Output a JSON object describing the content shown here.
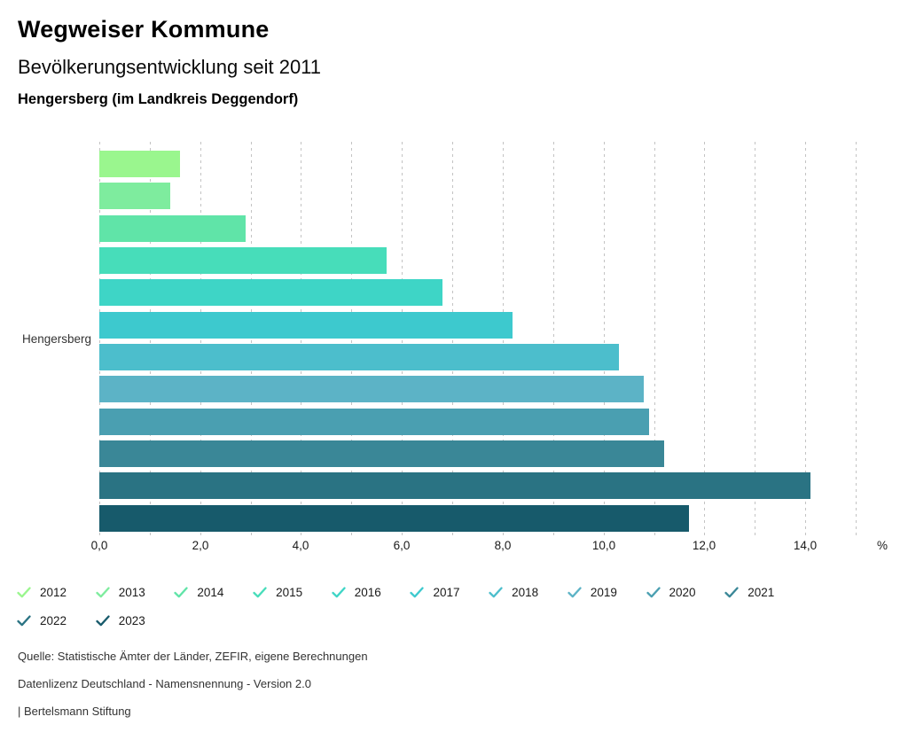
{
  "header": {
    "title": "Wegweiser Kommune",
    "subtitle": "Bevölkerungsentwicklung seit 2011",
    "municipality": "Hengersberg (im Landkreis Deggendorf)"
  },
  "chart_data": {
    "type": "bar",
    "orientation": "horizontal",
    "title": "Bevölkerungsentwicklung seit 2011",
    "category": "Hengersberg",
    "unit": "%",
    "xlim": [
      0,
      15
    ],
    "grid": true,
    "grid_interval": 1,
    "x_ticks": [
      {
        "value": 0,
        "label": "0,0"
      },
      {
        "value": 2,
        "label": "2,0"
      },
      {
        "value": 4,
        "label": "4,0"
      },
      {
        "value": 6,
        "label": "6,0"
      },
      {
        "value": 8,
        "label": "8,0"
      },
      {
        "value": 10,
        "label": "10,0"
      },
      {
        "value": 12,
        "label": "12,0"
      },
      {
        "value": 14,
        "label": "14,0"
      }
    ],
    "series": [
      {
        "name": "2012",
        "value": 1.6,
        "color": "#9AF68E"
      },
      {
        "name": "2013",
        "value": 1.4,
        "color": "#7EEC9E"
      },
      {
        "name": "2014",
        "value": 2.9,
        "color": "#60E4A8"
      },
      {
        "name": "2015",
        "value": 5.7,
        "color": "#47DDBA"
      },
      {
        "name": "2016",
        "value": 6.8,
        "color": "#3ED5C6"
      },
      {
        "name": "2017",
        "value": 8.2,
        "color": "#3DC9CE"
      },
      {
        "name": "2018",
        "value": 10.3,
        "color": "#4CBECC"
      },
      {
        "name": "2019",
        "value": 10.8,
        "color": "#5CB3C6"
      },
      {
        "name": "2020",
        "value": 10.9,
        "color": "#4A9FB1"
      },
      {
        "name": "2021",
        "value": 11.2,
        "color": "#3A8797"
      },
      {
        "name": "2022",
        "value": 14.1,
        "color": "#2A7383"
      },
      {
        "name": "2023",
        "value": 11.7,
        "color": "#175A6B"
      }
    ],
    "legend_position": "bottom",
    "legend_rows": [
      10,
      2
    ],
    "gridline_color": "#c3c3c3"
  },
  "footer": {
    "source": "Quelle: Statistische Ämter der Länder, ZEFIR, eigene Berechnungen",
    "license": "Datenlizenz Deutschland - Namensnennung - Version 2.0",
    "attribution": "| Bertelsmann Stiftung"
  }
}
